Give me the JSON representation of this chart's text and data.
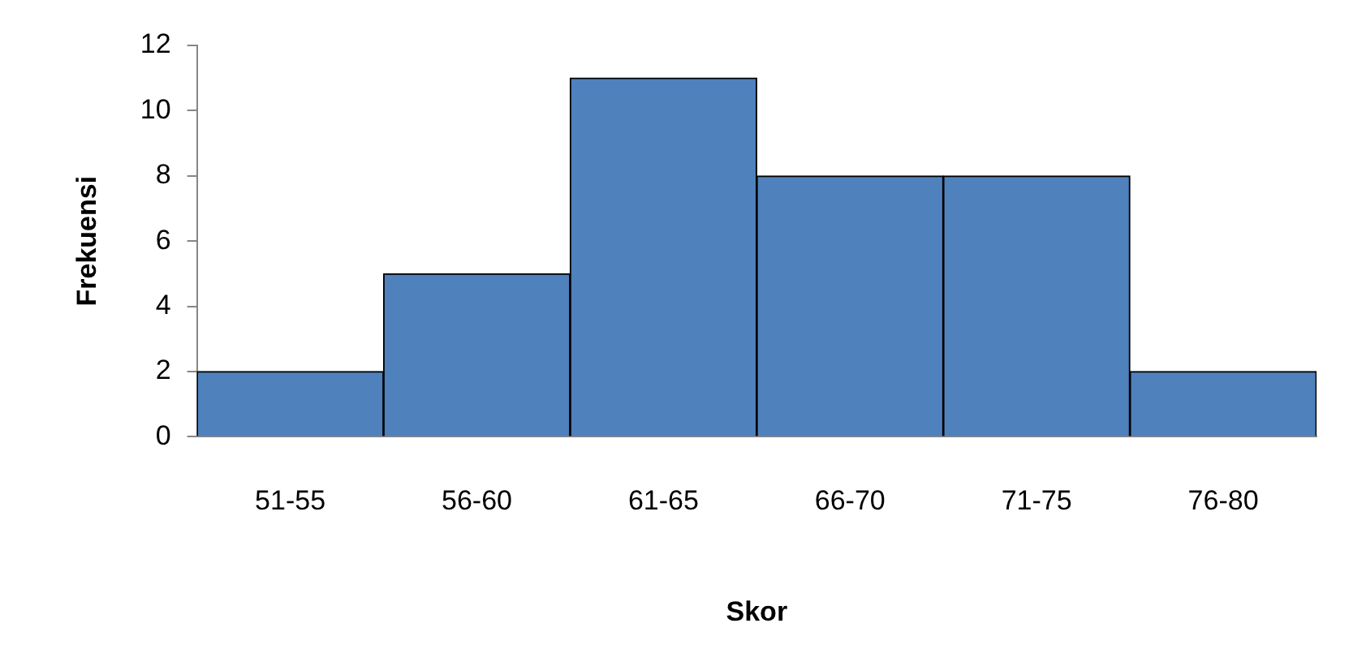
{
  "chart_data": {
    "type": "bar",
    "xlabel": "Skor",
    "ylabel": "Frekuensi",
    "categories": [
      "51-55",
      "56-60",
      "61-65",
      "66-70",
      "71-75",
      "76-80"
    ],
    "values": [
      2,
      5,
      11,
      8,
      8,
      2
    ],
    "color": "#4f81bd",
    "ylim": [
      0,
      12
    ],
    "yticks": [
      0,
      2,
      4,
      6,
      8,
      10,
      12
    ],
    "grid": false,
    "legend": false
  }
}
